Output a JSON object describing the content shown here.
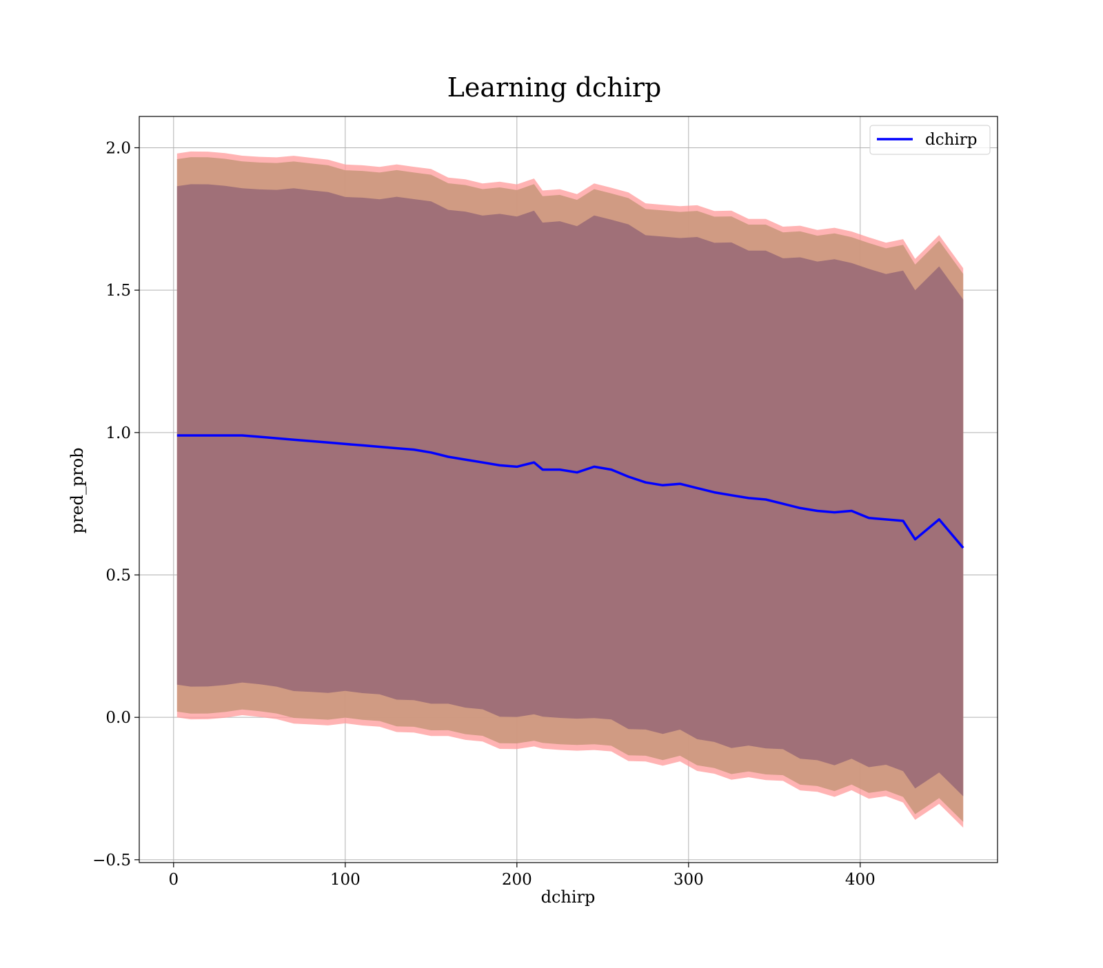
{
  "chart_data": {
    "type": "line",
    "title": "Learning dchirp",
    "xlabel": "dchirp",
    "ylabel": "pred_prob",
    "xlim": [
      -20,
      480
    ],
    "ylim": [
      -0.51,
      2.11
    ],
    "xticks": [
      0,
      100,
      200,
      300,
      400
    ],
    "yticks": [
      -0.5,
      0.0,
      0.5,
      1.0,
      1.5,
      2.0
    ],
    "xtick_labels": [
      "0",
      "100",
      "200",
      "300",
      "400"
    ],
    "ytick_labels": [
      "−0.5",
      "0.0",
      "0.5",
      "1.0",
      "1.5",
      "2.0"
    ],
    "grid": true,
    "legend": {
      "position": "top-right",
      "entries": [
        "dchirp"
      ]
    },
    "colors": {
      "line": "#0000ff",
      "band_outer": "#ff9999",
      "band_middle": "#c8977a",
      "band_inner": "#a07078",
      "grid": "#b0b0b0"
    },
    "series": [
      {
        "name": "dchirp",
        "x": [
          2,
          10,
          20,
          30,
          40,
          50,
          60,
          70,
          80,
          90,
          100,
          110,
          120,
          130,
          140,
          150,
          160,
          170,
          180,
          190,
          200,
          210,
          215,
          225,
          235,
          245,
          255,
          265,
          275,
          285,
          295,
          305,
          315,
          325,
          335,
          345,
          355,
          365,
          375,
          385,
          395,
          405,
          415,
          425,
          432,
          446,
          460
        ],
        "y": [
          0.99,
          0.99,
          0.99,
          0.99,
          0.99,
          0.985,
          0.98,
          0.975,
          0.97,
          0.965,
          0.96,
          0.955,
          0.95,
          0.945,
          0.94,
          0.93,
          0.915,
          0.905,
          0.895,
          0.885,
          0.88,
          0.895,
          0.87,
          0.87,
          0.86,
          0.88,
          0.87,
          0.845,
          0.825,
          0.815,
          0.82,
          0.805,
          0.79,
          0.78,
          0.77,
          0.765,
          0.75,
          0.735,
          0.725,
          0.72,
          0.725,
          0.7,
          0.695,
          0.69,
          0.625,
          0.695,
          0.595
        ]
      }
    ],
    "bands": [
      {
        "level": "outer",
        "half_width": 0.99,
        "half_width_end": 0.985
      },
      {
        "level": "middle",
        "half_width": 0.97,
        "half_width_end": 0.965
      },
      {
        "level": "inner",
        "half_width": 0.875,
        "half_width_end": 0.875
      }
    ]
  }
}
